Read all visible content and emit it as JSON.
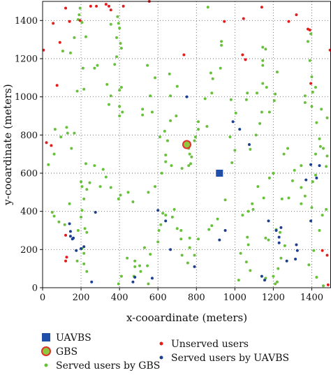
{
  "chart_data": {
    "type": "scatter",
    "title": "",
    "xlabel": "x-cooardinate (meters)",
    "ylabel": "y-cooardinate (meters)",
    "xlim": [
      0,
      1500
    ],
    "ylim": [
      0,
      1500
    ],
    "xticks": [
      0,
      200,
      400,
      600,
      800,
      1000,
      1200,
      1400
    ],
    "yticks": [
      0,
      200,
      400,
      600,
      800,
      1000,
      1200,
      1400
    ],
    "grid": "dotted",
    "legend_position": "bottom",
    "colors": {
      "uavbs": "#1f4fa8",
      "gbs_fill": "#8fc73e",
      "gbs_ring": "#e0312b",
      "unserved": "#e31c1c",
      "served_gbs": "#68c13a",
      "served_uavbs": "#1d3f8f"
    },
    "series": [
      {
        "key": "uavbs",
        "name": "UAVBS",
        "marker": "square",
        "points": [
          [
            920,
            600
          ]
        ]
      },
      {
        "key": "gbs",
        "name": "GBS",
        "marker": "ring-circle",
        "points": [
          [
            750,
            750
          ]
        ]
      },
      {
        "key": "unserved",
        "name": "Unserved users",
        "marker": "dot",
        "points": [
          [
            55,
            1385
          ],
          [
            90,
            1285
          ],
          [
            5,
            1245
          ],
          [
            75,
            1060
          ],
          [
            20,
            760
          ],
          [
            45,
            745
          ],
          [
            120,
            1465
          ],
          [
            140,
            1395
          ],
          [
            195,
            1400
          ],
          [
            250,
            1475
          ],
          [
            280,
            1475
          ],
          [
            330,
            1485
          ],
          [
            345,
            1475
          ],
          [
            355,
            1455
          ],
          [
            420,
            1475
          ],
          [
            555,
            1500
          ],
          [
            735,
            1220
          ],
          [
            945,
            1395
          ],
          [
            1045,
            1410
          ],
          [
            1040,
            1220
          ],
          [
            1055,
            1195
          ],
          [
            1140,
            1470
          ],
          [
            1280,
            1395
          ],
          [
            1320,
            1430
          ],
          [
            1380,
            1355
          ],
          [
            1390,
            1350
          ],
          [
            1395,
            1070
          ],
          [
            1495,
            1245
          ],
          [
            120,
            275
          ],
          [
            125,
            160
          ],
          [
            120,
            140
          ],
          [
            1455,
            195
          ],
          [
            1480,
            170
          ],
          [
            1485,
            15
          ]
        ]
      },
      {
        "key": "served_gbs",
        "name": "Served users by GBS",
        "marker": "dot",
        "points": [
          [
            195,
            1465
          ],
          [
            190,
            1430
          ],
          [
            185,
            1405
          ],
          [
            205,
            1390
          ],
          [
            165,
            1310
          ],
          [
            225,
            1315
          ],
          [
            210,
            1150
          ],
          [
            270,
            1150
          ],
          [
            285,
            1165
          ],
          [
            145,
            1230
          ],
          [
            105,
            1240
          ],
          [
            180,
            1030
          ],
          [
            215,
            1040
          ],
          [
            355,
            1380
          ],
          [
            390,
            1420
          ],
          [
            395,
            1385
          ],
          [
            400,
            1360
          ],
          [
            385,
            1310
          ],
          [
            405,
            1280
          ],
          [
            410,
            1255
          ],
          [
            385,
            1210
          ],
          [
            375,
            1170
          ],
          [
            410,
            1050
          ],
          [
            400,
            1035
          ],
          [
            335,
            1065
          ],
          [
            355,
            1005
          ],
          [
            345,
            960
          ],
          [
            400,
            950
          ],
          [
            415,
            920
          ],
          [
            400,
            900
          ],
          [
            545,
            1165
          ],
          [
            585,
            1100
          ],
          [
            660,
            1120
          ],
          [
            700,
            1055
          ],
          [
            665,
            1005
          ],
          [
            560,
            1005
          ],
          [
            520,
            935
          ],
          [
            520,
            905
          ],
          [
            570,
            920
          ],
          [
            695,
            900
          ],
          [
            665,
            875
          ],
          [
            860,
            1470
          ],
          [
            930,
            1290
          ],
          [
            930,
            1270
          ],
          [
            925,
            1150
          ],
          [
            875,
            1125
          ],
          [
            885,
            1095
          ],
          [
            880,
            1020
          ],
          [
            845,
            990
          ],
          [
            980,
            985
          ],
          [
            1005,
            915
          ],
          [
            1145,
            1260
          ],
          [
            1160,
            1250
          ],
          [
            1145,
            1190
          ],
          [
            1145,
            1165
          ],
          [
            1220,
            1130
          ],
          [
            1145,
            1070
          ],
          [
            1165,
            1050
          ],
          [
            1210,
            1015
          ],
          [
            1205,
            980
          ],
          [
            1180,
            920
          ],
          [
            1140,
            920
          ],
          [
            1115,
            1020
          ],
          [
            1065,
            1020
          ],
          [
            1060,
            985
          ],
          [
            1395,
            1330
          ],
          [
            1380,
            1290
          ],
          [
            1390,
            1190
          ],
          [
            1400,
            1105
          ],
          [
            1420,
            1050
          ],
          [
            1405,
            1025
          ],
          [
            1365,
            1005
          ],
          [
            1365,
            970
          ],
          [
            1400,
            950
          ],
          [
            1450,
            935
          ],
          [
            1480,
            890
          ],
          [
            1425,
            865
          ],
          [
            1440,
            780
          ],
          [
            1445,
            740
          ],
          [
            1460,
            730
          ],
          [
            1420,
            700
          ],
          [
            1480,
            690
          ],
          [
            1475,
            635
          ],
          [
            1420,
            590
          ],
          [
            1405,
            555
          ],
          [
            1345,
            525
          ],
          [
            1365,
            480
          ],
          [
            1345,
            440
          ],
          [
            1400,
            420
          ],
          [
            1475,
            410
          ],
          [
            1455,
            380
          ],
          [
            1440,
            300
          ],
          [
            1410,
            195
          ],
          [
            1385,
            120
          ],
          [
            1425,
            55
          ],
          [
            1460,
            10
          ],
          [
            1275,
            730
          ],
          [
            1255,
            700
          ],
          [
            1345,
            640
          ],
          [
            1310,
            615
          ],
          [
            1300,
            560
          ],
          [
            1280,
            470
          ],
          [
            1245,
            465
          ],
          [
            1150,
            470
          ],
          [
            1095,
            410
          ],
          [
            1070,
            400
          ],
          [
            1090,
            440
          ],
          [
            1120,
            530
          ],
          [
            1180,
            575
          ],
          [
            1200,
            600
          ],
          [
            1110,
            800
          ],
          [
            1130,
            860
          ],
          [
            1080,
            725
          ],
          [
            1000,
            720
          ],
          [
            985,
            655
          ],
          [
            975,
            790
          ],
          [
            810,
            830
          ],
          [
            855,
            845
          ],
          [
            810,
            870
          ],
          [
            795,
            790
          ],
          [
            790,
            770
          ],
          [
            760,
            730
          ],
          [
            765,
            700
          ],
          [
            775,
            685
          ],
          [
            770,
            650
          ],
          [
            760,
            640
          ],
          [
            725,
            625
          ],
          [
            670,
            640
          ],
          [
            650,
            770
          ],
          [
            610,
            790
          ],
          [
            635,
            820
          ],
          [
            640,
            695
          ],
          [
            640,
            660
          ],
          [
            620,
            600
          ],
          [
            585,
            530
          ],
          [
            550,
            500
          ],
          [
            470,
            450
          ],
          [
            445,
            500
          ],
          [
            405,
            485
          ],
          [
            395,
            465
          ],
          [
            315,
            620
          ],
          [
            330,
            580
          ],
          [
            355,
            525
          ],
          [
            300,
            530
          ],
          [
            270,
            640
          ],
          [
            225,
            650
          ],
          [
            200,
            555
          ],
          [
            205,
            530
          ],
          [
            230,
            515
          ],
          [
            245,
            550
          ],
          [
            215,
            465
          ],
          [
            150,
            730
          ],
          [
            130,
            810
          ],
          [
            165,
            810
          ],
          [
            125,
            840
          ],
          [
            95,
            790
          ],
          [
            65,
            830
          ],
          [
            60,
            700
          ],
          [
            30,
            645
          ],
          [
            50,
            395
          ],
          [
            60,
            375
          ],
          [
            85,
            345
          ],
          [
            115,
            330
          ],
          [
            140,
            440
          ],
          [
            205,
            405
          ],
          [
            200,
            370
          ],
          [
            220,
            310
          ],
          [
            185,
            300
          ],
          [
            230,
            290
          ],
          [
            205,
            205
          ],
          [
            215,
            180
          ],
          [
            180,
            140
          ],
          [
            215,
            125
          ],
          [
            230,
            85
          ],
          [
            395,
            20
          ],
          [
            410,
            60
          ],
          [
            475,
            60
          ],
          [
            440,
            155
          ],
          [
            480,
            140
          ],
          [
            480,
            110
          ],
          [
            505,
            115
          ],
          [
            510,
            85
          ],
          [
            550,
            20
          ],
          [
            545,
            115
          ],
          [
            560,
            175
          ],
          [
            530,
            210
          ],
          [
            600,
            240
          ],
          [
            605,
            300
          ],
          [
            615,
            330
          ],
          [
            625,
            390
          ],
          [
            640,
            380
          ],
          [
            685,
            410
          ],
          [
            675,
            370
          ],
          [
            700,
            310
          ],
          [
            720,
            300
          ],
          [
            720,
            255
          ],
          [
            725,
            170
          ],
          [
            755,
            130
          ],
          [
            790,
            170
          ],
          [
            765,
            210
          ],
          [
            765,
            260
          ],
          [
            810,
            255
          ],
          [
            865,
            305
          ],
          [
            880,
            325
          ],
          [
            910,
            360
          ],
          [
            950,
            460
          ],
          [
            1040,
            380
          ],
          [
            1065,
            265
          ],
          [
            1070,
            225
          ],
          [
            1030,
            180
          ],
          [
            1060,
            135
          ],
          [
            1080,
            90
          ],
          [
            1020,
            40
          ],
          [
            1160,
            50
          ],
          [
            1200,
            60
          ],
          [
            1220,
            30
          ],
          [
            1210,
            20
          ],
          [
            1225,
            100
          ],
          [
            1240,
            155
          ],
          [
            1260,
            220
          ],
          [
            1235,
            290
          ],
          [
            1215,
            305
          ],
          [
            1175,
            250
          ],
          [
            1160,
            260
          ]
        ]
      },
      {
        "key": "served_uavbs",
        "name": "Served users by UAVBS",
        "marker": "dot",
        "points": [
          [
            750,
            1000
          ],
          [
            990,
            870
          ],
          [
            1025,
            830
          ],
          [
            1075,
            750
          ],
          [
            1395,
            645
          ],
          [
            1440,
            640
          ],
          [
            1425,
            575
          ],
          [
            1370,
            565
          ],
          [
            1395,
            350
          ],
          [
            1175,
            350
          ],
          [
            1215,
            300
          ],
          [
            1240,
            315
          ],
          [
            1230,
            265
          ],
          [
            1230,
            235
          ],
          [
            1320,
            225
          ],
          [
            1325,
            195
          ],
          [
            1315,
            150
          ],
          [
            1270,
            140
          ],
          [
            1140,
            60
          ],
          [
            1155,
            40
          ],
          [
            950,
            300
          ],
          [
            920,
            250
          ],
          [
            640,
            350
          ],
          [
            600,
            405
          ],
          [
            665,
            200
          ],
          [
            790,
            110
          ],
          [
            570,
            50
          ],
          [
            480,
            55
          ],
          [
            470,
            30
          ],
          [
            275,
            395
          ],
          [
            255,
            30
          ],
          [
            215,
            215
          ],
          [
            200,
            205
          ],
          [
            175,
            195
          ],
          [
            160,
            260
          ],
          [
            155,
            255
          ],
          [
            145,
            270
          ],
          [
            145,
            295
          ],
          [
            140,
            335
          ]
        ]
      }
    ]
  }
}
